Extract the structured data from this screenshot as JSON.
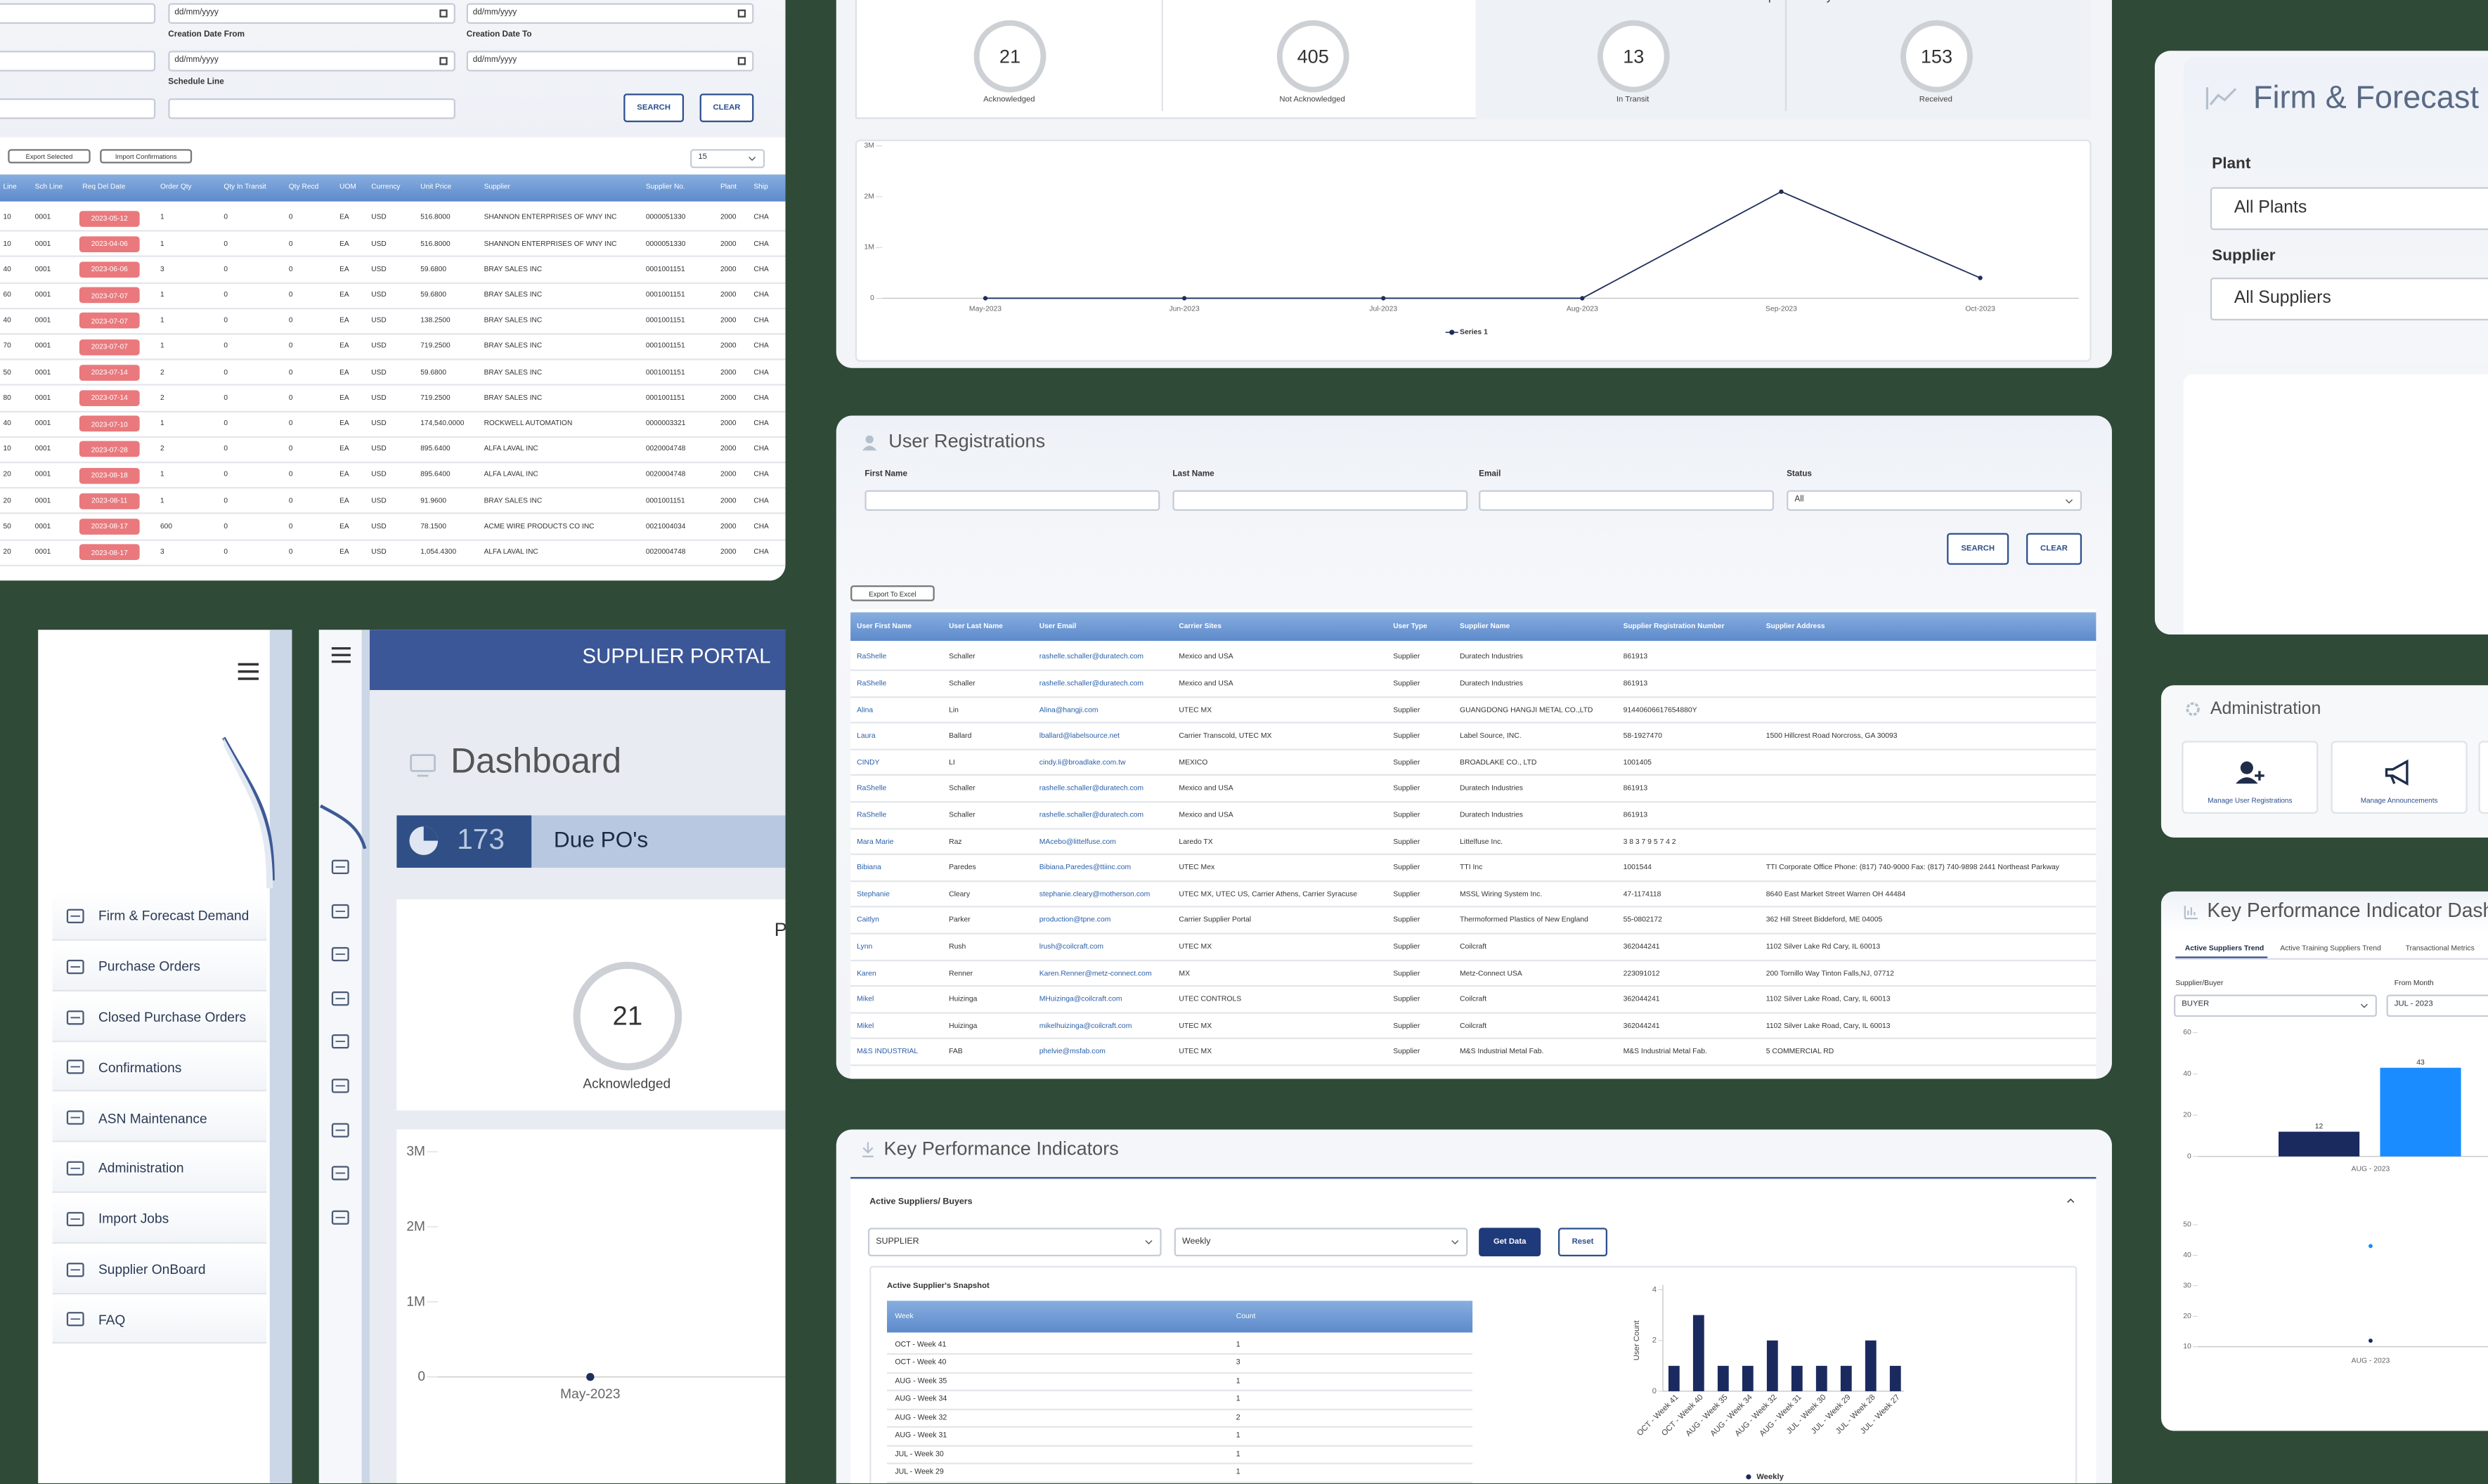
{
  "po_search": {
    "date_placeholder": "dd/mm/yyyy",
    "labels": [
      "Creation Date From",
      "Creation Date To",
      "Schedule Line"
    ],
    "search": "SEARCH",
    "clear": "CLEAR",
    "export": "Export Selected",
    "import": "Import Confirmations",
    "page_size": "15"
  },
  "po_table": {
    "headers": [
      "Line",
      "Sch Line",
      "Req Del Date",
      "Order Qty",
      "Qty In Transit",
      "Qty Recd",
      "UOM",
      "Currency",
      "Unit Price",
      "Supplier",
      "Supplier No.",
      "Plant",
      "Ship"
    ],
    "rows": [
      [
        "10",
        "0001",
        "2023-05-12",
        "1",
        "0",
        "0",
        "EA",
        "USD",
        "516.8000",
        "SHANNON ENTERPRISES OF WNY INC",
        "0000051330",
        "2000",
        "CHA"
      ],
      [
        "10",
        "0001",
        "2023-04-06",
        "1",
        "0",
        "0",
        "EA",
        "USD",
        "516.8000",
        "SHANNON ENTERPRISES OF WNY INC",
        "0000051330",
        "2000",
        "CHA"
      ],
      [
        "40",
        "0001",
        "2023-06-06",
        "3",
        "0",
        "0",
        "EA",
        "USD",
        "59.6800",
        "BRAY SALES INC",
        "0001001151",
        "2000",
        "CHA"
      ],
      [
        "60",
        "0001",
        "2023-07-07",
        "1",
        "0",
        "0",
        "EA",
        "USD",
        "59.6800",
        "BRAY SALES INC",
        "0001001151",
        "2000",
        "CHA"
      ],
      [
        "40",
        "0001",
        "2023-07-07",
        "1",
        "0",
        "0",
        "EA",
        "USD",
        "138.2500",
        "BRAY SALES INC",
        "0001001151",
        "2000",
        "CHA"
      ],
      [
        "70",
        "0001",
        "2023-07-07",
        "1",
        "0",
        "0",
        "EA",
        "USD",
        "719.2500",
        "BRAY SALES INC",
        "0001001151",
        "2000",
        "CHA"
      ],
      [
        "50",
        "0001",
        "2023-07-14",
        "2",
        "0",
        "0",
        "EA",
        "USD",
        "59.6800",
        "BRAY SALES INC",
        "0001001151",
        "2000",
        "CHA"
      ],
      [
        "80",
        "0001",
        "2023-07-14",
        "2",
        "0",
        "0",
        "EA",
        "USD",
        "719.2500",
        "BRAY SALES INC",
        "0001001151",
        "2000",
        "CHA"
      ],
      [
        "40",
        "0001",
        "2023-07-10",
        "1",
        "0",
        "0",
        "EA",
        "USD",
        "174,540.0000",
        "ROCKWELL AUTOMATION",
        "0000003321",
        "2000",
        "CHA"
      ],
      [
        "10",
        "0001",
        "2023-07-28",
        "2",
        "0",
        "0",
        "EA",
        "USD",
        "895.6400",
        "ALFA LAVAL INC",
        "0020004748",
        "2000",
        "CHA"
      ],
      [
        "20",
        "0001",
        "2023-08-18",
        "1",
        "0",
        "0",
        "EA",
        "USD",
        "895.6400",
        "ALFA LAVAL INC",
        "0020004748",
        "2000",
        "CHA"
      ],
      [
        "20",
        "0001",
        "2023-08-11",
        "1",
        "0",
        "0",
        "EA",
        "USD",
        "91.9600",
        "BRAY SALES INC",
        "0001001151",
        "2000",
        "CHA"
      ],
      [
        "50",
        "0001",
        "2023-08-17",
        "600",
        "0",
        "0",
        "EA",
        "USD",
        "78.1500",
        "ACME WIRE PRODUCTS CO INC",
        "0021004034",
        "2000",
        "CHA"
      ],
      [
        "20",
        "0001",
        "2023-08-17",
        "3",
        "0",
        "0",
        "EA",
        "USD",
        "1,054.4300",
        "ALFA LAVAL INC",
        "0020004748",
        "2000",
        "CHA"
      ]
    ]
  },
  "summary": {
    "po_title": "PO Confirmations",
    "receipt_title": "Receipt Summary",
    "stats": [
      {
        "value": 21,
        "label": "Acknowledged"
      },
      {
        "value": 405,
        "label": "Not Acknowledged"
      },
      {
        "value": 13,
        "label": "In Transit"
      },
      {
        "value": 153,
        "label": "Received"
      }
    ]
  },
  "receipt_chart": {
    "type": "line",
    "categories": [
      "May-2023",
      "Jun-2023",
      "Jul-2023",
      "Aug-2023",
      "Sep-2023",
      "Oct-2023"
    ],
    "series": [
      {
        "name": "Series 1",
        "color": "#1f2d5c",
        "values": [
          0,
          0,
          0,
          0,
          2100000,
          400000
        ]
      }
    ],
    "ylim": [
      0,
      3000000
    ],
    "yticks": [
      0,
      {
        "value": 1000000,
        "label": "1M"
      },
      {
        "value": 2000000,
        "label": "2M"
      },
      {
        "value": 3000000,
        "label": "3M"
      }
    ]
  },
  "user_registrations": {
    "title": "User Registrations",
    "fields": [
      "First Name",
      "Last Name",
      "Email",
      "Status"
    ],
    "status_value": "All",
    "search": "SEARCH",
    "clear": "CLEAR",
    "export": "Export To Excel",
    "headers": [
      "User First Name",
      "User Last Name",
      "User Email",
      "Carrier Sites",
      "User Type",
      "Supplier Name",
      "Supplier Registration Number",
      "Supplier Address"
    ],
    "rows": [
      [
        "RaShelle",
        "Schaller",
        "rashelle.schaller@duratech.com",
        "Mexico and USA",
        "Supplier",
        "Duratech Industries",
        "861913"
      ],
      [
        "RaShelle",
        "Schaller",
        "rashelle.schaller@duratech.com",
        "Mexico and USA",
        "Supplier",
        "Duratech Industries",
        "861913"
      ],
      [
        "Alina",
        "Lin",
        "Alina@hangji.com",
        "UTEC MX",
        "Supplier",
        "GUANGDONG HANGJI METAL CO.,LTD",
        "91440606617654880Y"
      ],
      [
        "Laura",
        "Ballard",
        "lballard@labelsource.net",
        "Carrier Transcold, UTEC MX",
        "Supplier",
        "Label Source, INC.",
        "58-1927470",
        "1500 Hillcrest Road Norcross, GA 30093"
      ],
      [
        "CINDY",
        "LI",
        "cindy.li@broadlake.com.tw",
        "MEXICO",
        "Supplier",
        "BROADLAKE CO., LTD",
        "1001405"
      ],
      [
        "RaShelle",
        "Schaller",
        "rashelle.schaller@duratech.com",
        "Mexico and USA",
        "Supplier",
        "Duratech Industries",
        "861913"
      ],
      [
        "RaShelle",
        "Schaller",
        "rashelle.schaller@duratech.com",
        "Mexico and USA",
        "Supplier",
        "Duratech Industries",
        "861913"
      ],
      [
        "Mara Marie",
        "Raz",
        "MAcebo@littelfuse.com",
        "Laredo TX",
        "Supplier",
        "Littelfuse Inc.",
        "3 8 3 7 9 5 7 4 2"
      ],
      [
        "Bibiana",
        "Paredes",
        "Bibiana.Paredes@ttiinc.com",
        "UTEC Mex",
        "Supplier",
        "TTI Inc",
        "1001544",
        "TTI Corporate Office Phone: (817) 740-9000 Fax: (817) 740-9898 2441 Northeast Parkway"
      ],
      [
        "Stephanie",
        "Cleary",
        "stephanie.cleary@motherson.com",
        "UTEC MX, UTEC US, Carrier Athens, Carrier Syracuse",
        "Supplier",
        "MSSL Wiring System Inc.",
        "47-1174118",
        "8640 East Market Street Warren OH 44484"
      ],
      [
        "Caitlyn",
        "Parker",
        "production@tpne.com",
        "Carrier Supplier Portal",
        "Supplier",
        "Thermoformed Plastics of New England",
        "55-0802172",
        "362 Hill Street Biddeford, ME 04005"
      ],
      [
        "Lynn",
        "Rush",
        "lrush@coilcraft.com",
        "UTEC MX",
        "Supplier",
        "Coilcraft",
        "362044241",
        "1102 Silver Lake Rd Cary, IL 60013"
      ],
      [
        "Karen",
        "Renner",
        "Karen.Renner@metz-connect.com",
        "MX",
        "Supplier",
        "Metz-Connect USA",
        "223091012",
        "200 Tornillo Way Tinton Falls,NJ, 07712"
      ],
      [
        "Mikel",
        "Huizinga",
        "MHuizinga@coilcraft.com",
        "UTEC CONTROLS",
        "Supplier",
        "Coilcraft",
        "362044241",
        "1102 Silver Lake Road, Cary, IL 60013"
      ],
      [
        "Mikel",
        "Huizinga",
        "mikelhuizinga@coilcraft.com",
        "UTEC MX",
        "Supplier",
        "Coilcraft",
        "362044241",
        "1102 Silver Lake Road, Cary, IL 60013"
      ],
      [
        "M&S INDUSTRIAL",
        "FAB",
        "phelvie@msfab.com",
        "UTEC MX",
        "Supplier",
        "M&S Industrial Metal Fab.",
        "M&S Industrial Metal Fab.",
        "5 COMMERCIAL RD"
      ]
    ]
  },
  "kpi": {
    "title": "Key Performance Indicators",
    "section": "Active Suppliers/ Buyers",
    "type_select": "SUPPLIER",
    "period_select": "Weekly",
    "get_data": "Get Data",
    "reset": "Reset",
    "snapshot_title": "Active Supplier's Snapshot",
    "snapshot_headers": [
      "Week",
      "Count"
    ],
    "snapshot_rows": [
      [
        "OCT - Week 41",
        "1"
      ],
      [
        "OCT - Week 40",
        "3"
      ],
      [
        "AUG - Week 35",
        "1"
      ],
      [
        "AUG - Week 34",
        "1"
      ],
      [
        "AUG - Week 32",
        "2"
      ],
      [
        "AUG - Week 31",
        "1"
      ],
      [
        "JUL - Week 30",
        "1"
      ],
      [
        "JUL - Week 29",
        "1"
      ]
    ],
    "chart": {
      "type": "bar",
      "ylabel": "User Count",
      "categories": [
        "OCT - Week 41",
        "OCT - Week 40",
        "AUG - Week 35",
        "AUG - Week 34",
        "AUG - Week 32",
        "AUG - Week 31",
        "JUL - Week 30",
        "JUL - Week 29",
        "JUL - Week 28",
        "JUL - Week 27"
      ],
      "series": [
        {
          "name": "Weekly",
          "color": "#1b2a5e",
          "values": [
            1,
            3,
            1,
            1,
            2,
            1,
            1,
            1,
            2,
            1
          ]
        }
      ],
      "ylim": [
        0,
        4
      ],
      "yticks": [
        0,
        2,
        4
      ]
    }
  },
  "sidebar": {
    "menu": [
      "Firm & Forecast Demand",
      "Purchase Orders",
      "Closed Purchase Orders",
      "Confirmations",
      "ASN Maintenance",
      "Administration",
      "Import Jobs",
      "Supplier OnBoard",
      "FAQ"
    ]
  },
  "dashboard": {
    "brand": "SUPPLIER PORTAL",
    "title": "Dashboard",
    "due_count": 173,
    "due_label": "Due PO's",
    "section_title": "PO Confirmations",
    "gauge": {
      "value": 21,
      "label": "Acknowledged"
    },
    "chart": {
      "type": "line",
      "categories": [
        "May-2023"
      ],
      "series": [
        {
          "color": "#1f2d5c",
          "values": [
            0
          ]
        }
      ],
      "ylim": [
        0,
        3000000
      ],
      "yticks": [
        0,
        {
          "value": 1000000,
          "label": "1M"
        },
        {
          "value": 2000000,
          "label": "2M"
        },
        {
          "value": 3000000,
          "label": "3M"
        }
      ]
    }
  },
  "firm_panel": {
    "title": "Firm & Forecast Demand",
    "plant_label": "Plant",
    "plant_value": "All Plants",
    "supplier_label": "Supplier",
    "supplier_value": "All Suppliers"
  },
  "admin_panel": {
    "title": "Administration",
    "items": [
      "Manage User Registrations",
      "Manage Announcements"
    ]
  },
  "kpi_dashboard": {
    "title": "Key Performance Indicator Dashboard",
    "tabs": [
      "Active Suppliers Trend",
      "Active Training Suppliers Trend",
      "Transactional Metrics"
    ],
    "filters": [
      {
        "label": "Supplier/Buyer",
        "value": "BUYER"
      },
      {
        "label": "From Month",
        "value": "JUL - 2023"
      }
    ],
    "bar_chart": {
      "type": "bar",
      "categories": [
        "AUG - 2023"
      ],
      "series": [
        {
          "color": "#1b2a5e",
          "values": [
            12
          ]
        },
        {
          "color": "#1a8cff",
          "values": [
            43
          ]
        }
      ],
      "ylim": [
        0,
        60
      ],
      "yticks": [
        0,
        20,
        40,
        60
      ]
    },
    "line_chart": {
      "type": "line",
      "categories": [
        "AUG - 2023"
      ],
      "series": [
        {
          "color": "#1a8cff",
          "values": [
            43
          ]
        },
        {
          "color": "#1b2a5e",
          "values": [
            12
          ]
        }
      ],
      "ylim": [
        10,
        55
      ],
      "yticks": [
        10,
        20,
        30,
        40,
        50
      ]
    }
  }
}
